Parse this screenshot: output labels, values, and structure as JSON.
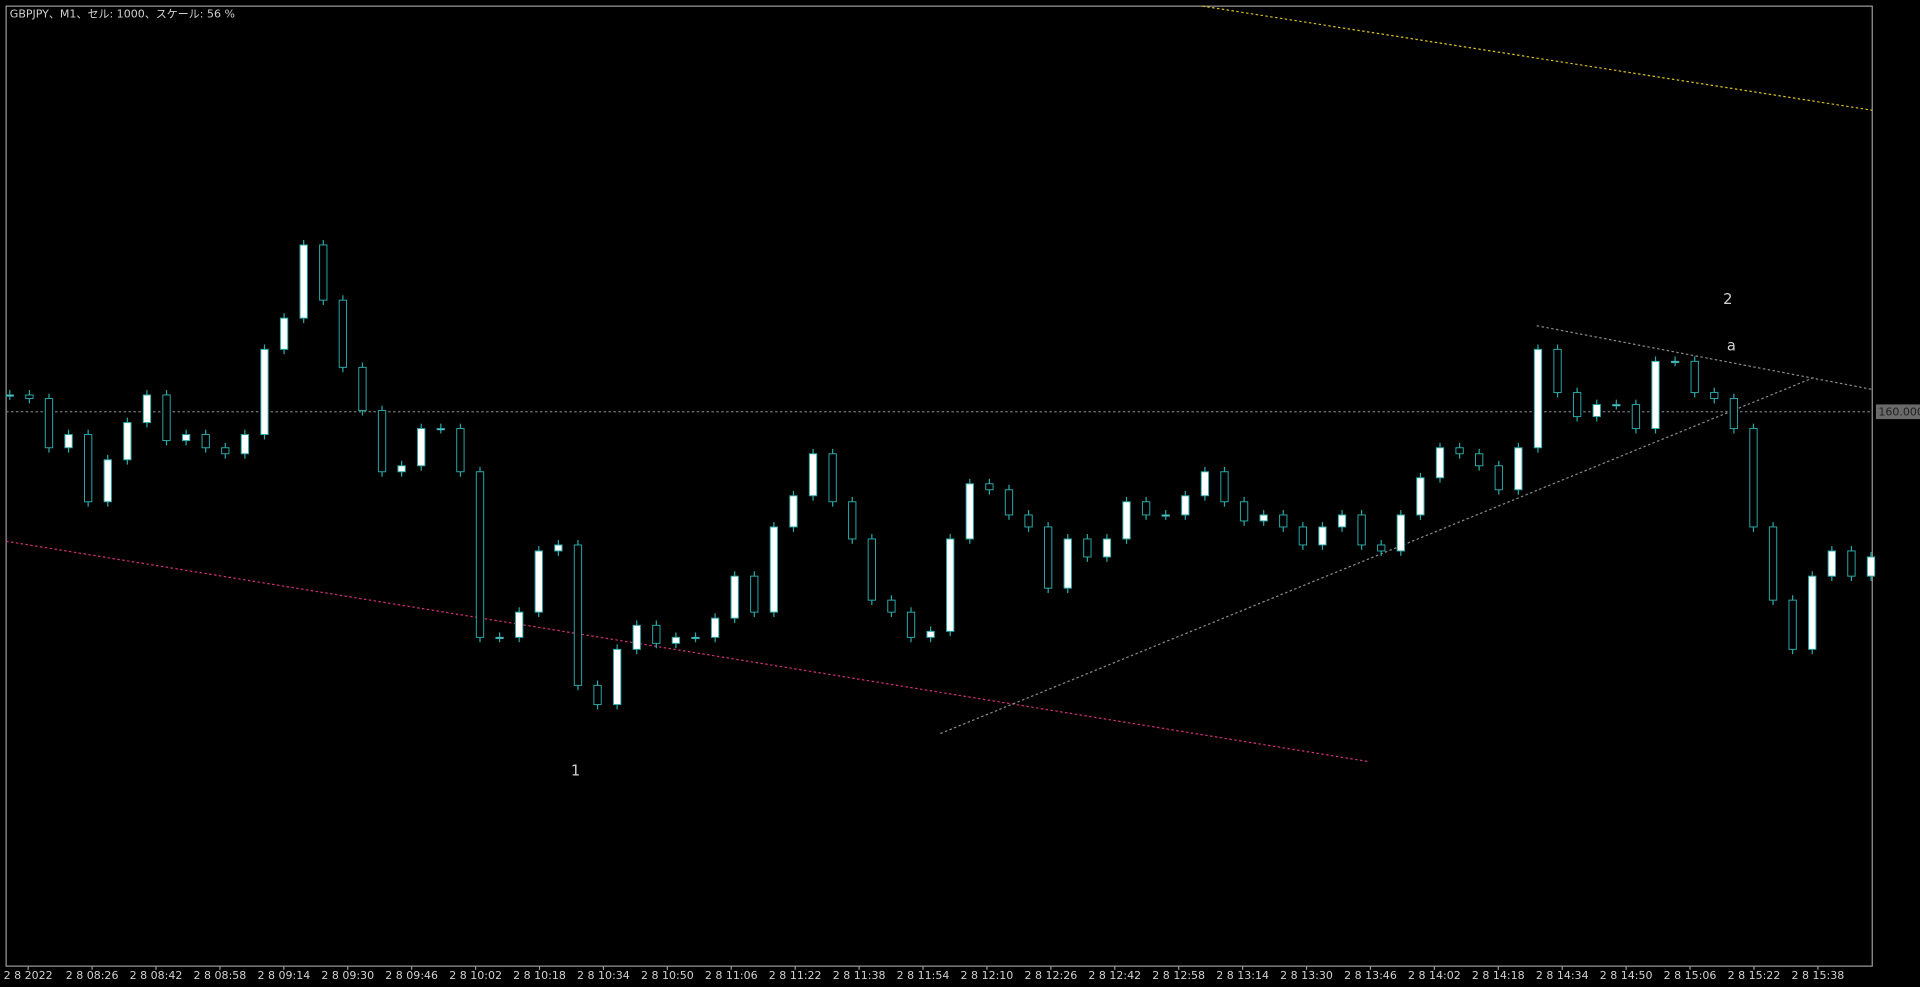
{
  "chart_data": {
    "type": "candlestick",
    "title": "GBPJPY、M1、セル: 1000、スケール: 56 %",
    "xtick_labels": [
      "2 8 2022",
      "2 8 08:26",
      "2 8 08:42",
      "2 8 08:58",
      "2 8 09:14",
      "2 8 09:30",
      "2 8 09:46",
      "2 8 10:02",
      "2 8 10:18",
      "2 8 10:34",
      "2 8 10:50",
      "2 8 11:06",
      "2 8 11:22",
      "2 8 11:38",
      "2 8 11:54",
      "2 8 12:10",
      "2 8 12:26",
      "2 8 12:42",
      "2 8 12:58",
      "2 8 13:14",
      "2 8 13:30",
      "2 8 13:46",
      "2 8 14:02",
      "2 8 14:18",
      "2 8 14:34",
      "2 8 14:50",
      "2 8 15:06",
      "2 8 15:22",
      "2 8 15:38"
    ],
    "values": [
      160.014,
      160.011,
      159.97,
      159.981,
      159.925,
      159.96,
      159.991,
      160.014,
      159.976,
      159.981,
      159.97,
      159.965,
      159.981,
      160.052,
      160.078,
      160.139,
      160.093,
      160.037,
      160.001,
      159.95,
      159.955,
      159.986,
      159.986,
      159.95,
      159.812,
      159.812,
      159.833,
      159.884,
      159.889,
      159.772,
      159.756,
      159.802,
      159.822,
      159.807,
      159.812,
      159.812,
      159.828,
      159.863,
      159.833,
      159.904,
      159.93,
      159.965,
      159.925,
      159.894,
      159.843,
      159.833,
      159.812,
      159.817,
      159.894,
      159.94,
      159.935,
      159.914,
      159.904,
      159.853,
      159.894,
      159.879,
      159.894,
      159.925,
      159.914,
      159.914,
      159.93,
      159.95,
      159.925,
      159.909,
      159.914,
      159.904,
      159.889,
      159.904,
      159.914,
      159.889,
      159.884,
      159.914,
      159.945,
      159.97,
      159.965,
      159.955,
      159.935,
      159.97,
      160.052,
      160.016,
      159.996,
      160.006,
      160.006,
      159.986,
      160.042,
      160.042,
      160.016,
      160.011,
      159.986,
      159.904,
      159.843,
      159.802,
      159.863,
      159.884,
      159.863,
      159.879
    ],
    "color": "#2aa8a8",
    "ylim": [
      159.538,
      160.338
    ],
    "yticks": [
      {
        "value": 160,
        "label": "160.000"
      }
    ],
    "annotations": [
      "1",
      "2",
      "a"
    ]
  }
}
